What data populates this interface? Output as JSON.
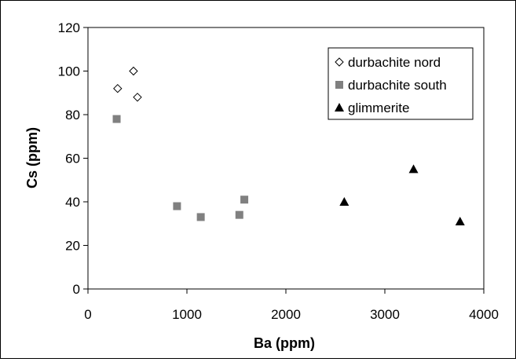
{
  "chart_data": {
    "type": "scatter",
    "xlabel": "Ba (ppm)",
    "ylabel": "Cs (ppm)",
    "xlim": [
      0,
      4000
    ],
    "ylim": [
      0,
      120
    ],
    "xticks": [
      "0",
      "1000",
      "2000",
      "3000",
      "4000"
    ],
    "yticks": [
      "0",
      "20",
      "40",
      "60",
      "80",
      "100",
      "120"
    ],
    "grid": false,
    "legend_position": "top-right",
    "series": [
      {
        "name": "durbachite nord",
        "marker": "open-diamond",
        "color": "#000000",
        "points": [
          {
            "x": 300,
            "y": 92
          },
          {
            "x": 460,
            "y": 100
          },
          {
            "x": 500,
            "y": 88
          }
        ]
      },
      {
        "name": "durbachite south",
        "marker": "square",
        "color": "#808080",
        "points": [
          {
            "x": 290,
            "y": 78
          },
          {
            "x": 900,
            "y": 38
          },
          {
            "x": 1140,
            "y": 33
          },
          {
            "x": 1530,
            "y": 34
          },
          {
            "x": 1580,
            "y": 41
          }
        ]
      },
      {
        "name": "glimmerite",
        "marker": "triangle",
        "color": "#000000",
        "points": [
          {
            "x": 2590,
            "y": 40
          },
          {
            "x": 3290,
            "y": 55
          },
          {
            "x": 3760,
            "y": 31
          }
        ]
      }
    ]
  }
}
